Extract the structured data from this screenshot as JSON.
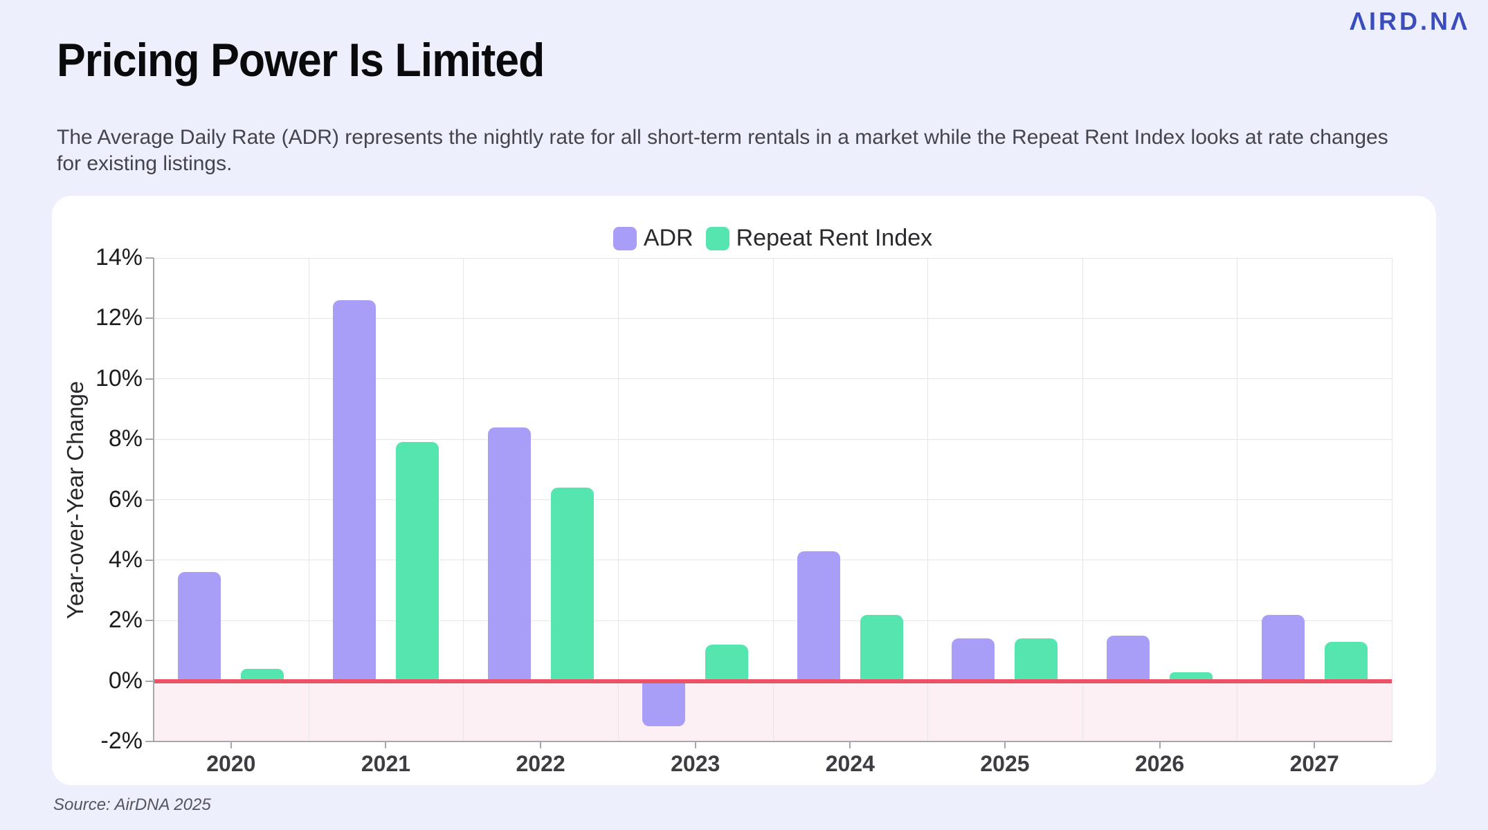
{
  "logo": {
    "text": "ΛIRD.NΛ"
  },
  "header": {
    "title": "Pricing Power Is Limited",
    "subtitle": "The Average Daily Rate (ADR) represents the nightly rate for all short-term rentals in a market while the Repeat Rent Index looks at rate changes for existing listings."
  },
  "footer": {
    "source": "Source: AirDNA 2025"
  },
  "chart_data": {
    "type": "bar",
    "title": "",
    "categories": [
      "2020",
      "2021",
      "2022",
      "2023",
      "2024",
      "2025",
      "2026",
      "2027"
    ],
    "series": [
      {
        "name": "ADR",
        "color": "#a89ef8",
        "values": [
          3.6,
          12.6,
          8.4,
          -1.5,
          4.3,
          1.4,
          1.5,
          2.2
        ]
      },
      {
        "name": "Repeat Rent Index",
        "color": "#55e5af",
        "values": [
          0.4,
          7.9,
          6.4,
          1.2,
          2.2,
          1.4,
          0.3,
          1.3
        ]
      }
    ],
    "xlabel": "",
    "ylabel": "Year-over-Year Change",
    "ylim": [
      -2,
      14
    ],
    "ytick_step": 2,
    "ytick_suffix": "%",
    "grid": true,
    "legend_position": "top-center",
    "colors": {
      "gridline": "#e6e6ea",
      "axis_line": "#a6a6ad",
      "zero_line": "#ec5265",
      "negative_region": "#fdf0f4"
    }
  }
}
